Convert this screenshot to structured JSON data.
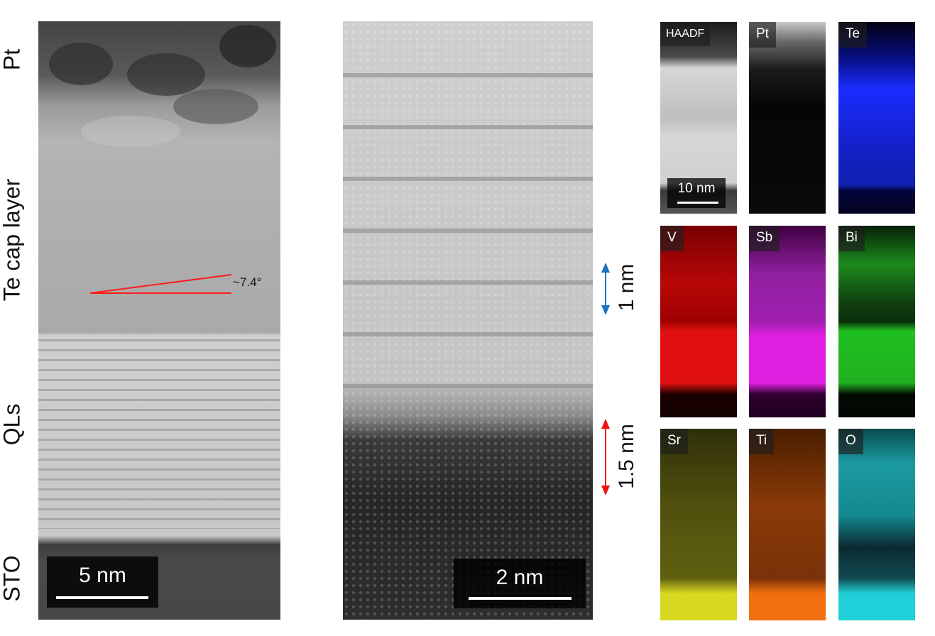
{
  "left_panel": {
    "layer_labels": [
      "Pt",
      "Te cap layer",
      "QLs",
      "STO"
    ],
    "angle_label": "~7.4°",
    "scale_bar": "5 nm",
    "angle_line_color": "#ff1a1a"
  },
  "middle_panel": {
    "scale_bar": "2 nm",
    "measurements": [
      {
        "label": "1 nm",
        "color": "#1e73be"
      },
      {
        "label": "1.5 nm",
        "color": "#ee1111"
      }
    ]
  },
  "eds_maps": {
    "scale_bar": "10 nm",
    "panels": [
      {
        "label": "HAADF",
        "color": "#bdbdbd"
      },
      {
        "label": "Pt",
        "color": "#ffffff"
      },
      {
        "label": "Te",
        "color": "#1a2dff"
      },
      {
        "label": "V",
        "color": "#e01010"
      },
      {
        "label": "Sb",
        "color": "#e020e0"
      },
      {
        "label": "Bi",
        "color": "#20c020"
      },
      {
        "label": "Sr",
        "color": "#d8d820"
      },
      {
        "label": "Ti",
        "color": "#f07010"
      },
      {
        "label": "O",
        "color": "#20d0d8"
      }
    ]
  }
}
